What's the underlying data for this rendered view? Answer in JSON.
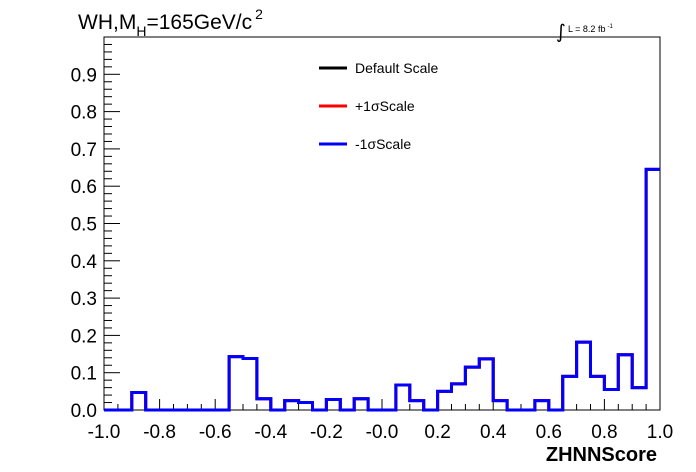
{
  "chart_data": {
    "type": "histogram",
    "title": {
      "main": "WH,M",
      "sub": "H",
      "rest": "=165GeV/c",
      "sup": "2"
    },
    "luminosity": {
      "label": "L = 8.2 fb",
      "sup": "-1"
    },
    "xlabel": "ZHNNScore",
    "ylabel": "",
    "xlim": [
      -1.0,
      1.0
    ],
    "ylim": [
      0.0,
      1.0
    ],
    "x_ticks": [
      {
        "value": -1.0,
        "label": "-1.0"
      },
      {
        "value": -0.8,
        "label": "-0.8"
      },
      {
        "value": -0.6,
        "label": "-0.6"
      },
      {
        "value": -0.4,
        "label": "-0.4"
      },
      {
        "value": -0.2,
        "label": "-0.2"
      },
      {
        "value": 0.0,
        "label": "-0.0"
      },
      {
        "value": 0.2,
        "label": "0.2"
      },
      {
        "value": 0.4,
        "label": "0.4"
      },
      {
        "value": 0.6,
        "label": "0.6"
      },
      {
        "value": 0.8,
        "label": "0.8"
      },
      {
        "value": 1.0,
        "label": "1.0"
      }
    ],
    "y_ticks": [
      {
        "value": 0.0,
        "label": "0.0"
      },
      {
        "value": 0.1,
        "label": "0.1"
      },
      {
        "value": 0.2,
        "label": "0.2"
      },
      {
        "value": 0.3,
        "label": "0.3"
      },
      {
        "value": 0.4,
        "label": "0.4"
      },
      {
        "value": 0.5,
        "label": "0.5"
      },
      {
        "value": 0.6,
        "label": "0.6"
      },
      {
        "value": 0.7,
        "label": "0.7"
      },
      {
        "value": 0.8,
        "label": "0.8"
      },
      {
        "value": 0.9,
        "label": "0.9"
      }
    ],
    "bin_edges": [
      -1.0,
      -0.95,
      -0.9,
      -0.85,
      -0.8,
      -0.75,
      -0.7,
      -0.65,
      -0.6,
      -0.55,
      -0.5,
      -0.45,
      -0.4,
      -0.35,
      -0.3,
      -0.25,
      -0.2,
      -0.15,
      -0.1,
      -0.05,
      0.0,
      0.05,
      0.1,
      0.15,
      0.2,
      0.25,
      0.3,
      0.35,
      0.4,
      0.45,
      0.5,
      0.55,
      0.6,
      0.65,
      0.7,
      0.75,
      0.8,
      0.85,
      0.9,
      0.95,
      1.0
    ],
    "series": [
      {
        "name": "Default Scale",
        "color": "#000000",
        "values": [
          0,
          0,
          0.047,
          0,
          0,
          0,
          0,
          0,
          0,
          0.143,
          0.138,
          0.03,
          0,
          0.025,
          0.02,
          0,
          0.028,
          0,
          0.03,
          0,
          0,
          0.067,
          0.025,
          0,
          0.05,
          0.07,
          0.115,
          0.137,
          0.025,
          0,
          0,
          0.025,
          0,
          0.09,
          0.182,
          0.09,
          0.055,
          0.148,
          0.06,
          0.645
        ]
      },
      {
        "name": "+1σScale",
        "color": "#ff0000",
        "values": [
          0,
          0,
          0.047,
          0,
          0,
          0,
          0,
          0,
          0,
          0.143,
          0.138,
          0.03,
          0,
          0.025,
          0.02,
          0,
          0.028,
          0,
          0.03,
          0,
          0,
          0.067,
          0.025,
          0,
          0.05,
          0.07,
          0.115,
          0.137,
          0.025,
          0,
          0,
          0.025,
          0,
          0.09,
          0.182,
          0.09,
          0.055,
          0.148,
          0.06,
          0.645
        ]
      },
      {
        "name": "-1σScale",
        "color": "#0000ff",
        "values": [
          0,
          0,
          0.047,
          0,
          0,
          0,
          0,
          0,
          0,
          0.143,
          0.138,
          0.03,
          0,
          0.025,
          0.02,
          0,
          0.028,
          0,
          0.03,
          0,
          0,
          0.067,
          0.025,
          0,
          0.05,
          0.07,
          0.115,
          0.137,
          0.025,
          0,
          0,
          0.025,
          0,
          0.09,
          0.182,
          0.09,
          0.055,
          0.148,
          0.06,
          0.645
        ]
      }
    ],
    "legend": {
      "placement": "top-center"
    },
    "grid": false
  }
}
